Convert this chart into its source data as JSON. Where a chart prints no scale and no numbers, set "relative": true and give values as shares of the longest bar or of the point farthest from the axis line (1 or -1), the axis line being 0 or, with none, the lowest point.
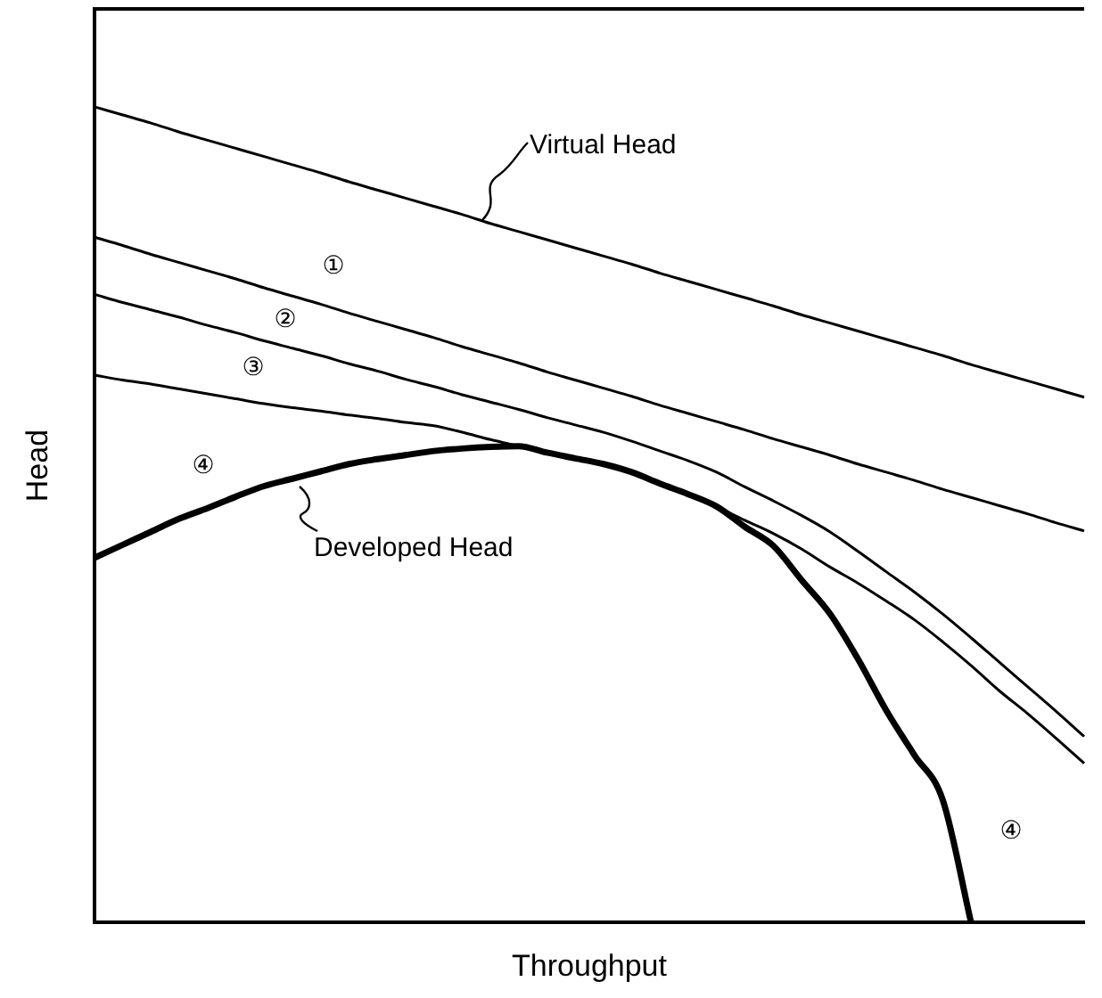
{
  "chart_data": {
    "type": "line",
    "relative": true,
    "xlabel": "Throughput",
    "ylabel": "Head",
    "categories": [
      null,
      null,
      null,
      null,
      null,
      null,
      null,
      null,
      null,
      null,
      null,
      null,
      null,
      null,
      null,
      null,
      null,
      null,
      null,
      null,
      null,
      null,
      null,
      null,
      null,
      null,
      null,
      null,
      null,
      null,
      null,
      null,
      null,
      null,
      null,
      null
    ],
    "series": [
      {
        "name": "Virtual Head",
        "color": "#000000",
        "values": [
          1.0,
          0.99,
          0.98,
          0.969,
          0.959,
          0.949,
          0.939,
          0.929,
          0.919,
          0.908,
          0.898,
          0.888,
          0.878,
          0.868,
          0.857,
          0.847,
          0.837,
          0.827,
          0.817,
          0.807,
          0.796,
          0.786,
          0.776,
          0.766,
          0.756,
          0.745,
          0.735,
          0.725,
          0.715,
          0.705,
          0.695,
          0.684,
          0.674,
          0.664,
          0.654,
          0.644
        ]
      },
      {
        "color": "#000000",
        "values": [
          0.84,
          0.83,
          0.819,
          0.809,
          0.799,
          0.789,
          0.778,
          0.768,
          0.758,
          0.747,
          0.737,
          0.727,
          0.717,
          0.706,
          0.696,
          0.686,
          0.675,
          0.665,
          0.655,
          0.645,
          0.634,
          0.624,
          0.614,
          0.604,
          0.593,
          0.583,
          0.573,
          0.562,
          0.552,
          0.542,
          0.531,
          0.521,
          0.511,
          0.501,
          0.49,
          0.48
        ]
      },
      {
        "color": "#000000",
        "values": [
          0.77,
          0.76,
          0.751,
          0.742,
          0.732,
          0.723,
          0.713,
          0.704,
          0.695,
          0.685,
          0.676,
          0.666,
          0.657,
          0.647,
          0.638,
          0.629,
          0.619,
          0.61,
          0.601,
          0.59,
          0.578,
          0.566,
          0.552,
          0.534,
          0.517,
          0.499,
          0.479,
          0.455,
          0.43,
          0.405,
          0.378,
          0.349,
          0.319,
          0.289,
          0.259,
          0.228
        ]
      },
      {
        "color": "#000000",
        "values": [
          0.671,
          0.665,
          0.66,
          0.654,
          0.648,
          0.642,
          0.636,
          0.631,
          0.627,
          0.622,
          0.618,
          0.613,
          0.609,
          0.601,
          0.592,
          0.584,
          0.576,
          0.569,
          0.562,
          0.552,
          0.538,
          0.525,
          0.51,
          0.493,
          0.477,
          0.458,
          0.436,
          0.416,
          0.394,
          0.371,
          0.344,
          0.315,
          0.284,
          0.256,
          0.226,
          0.195
        ]
      },
      {
        "name": "Developed Head",
        "color": "#000000",
        "values": [
          0.447,
          0.463,
          0.479,
          0.495,
          0.508,
          0.522,
          0.535,
          0.544,
          0.553,
          0.562,
          0.568,
          0.573,
          0.578,
          0.581,
          0.583,
          0.584,
          0.576,
          0.569,
          0.562,
          0.552,
          0.538,
          0.525,
          0.51,
          0.485,
          0.462,
          0.42,
          0.379,
          0.323,
          0.26,
          0.205,
          0.15,
          0,
          null,
          null,
          null,
          null
        ]
      }
    ],
    "annotations": [
      "①",
      "②",
      "③",
      "④",
      "④"
    ],
    "grid": false,
    "marker": "none",
    "line_style": "solid"
  }
}
